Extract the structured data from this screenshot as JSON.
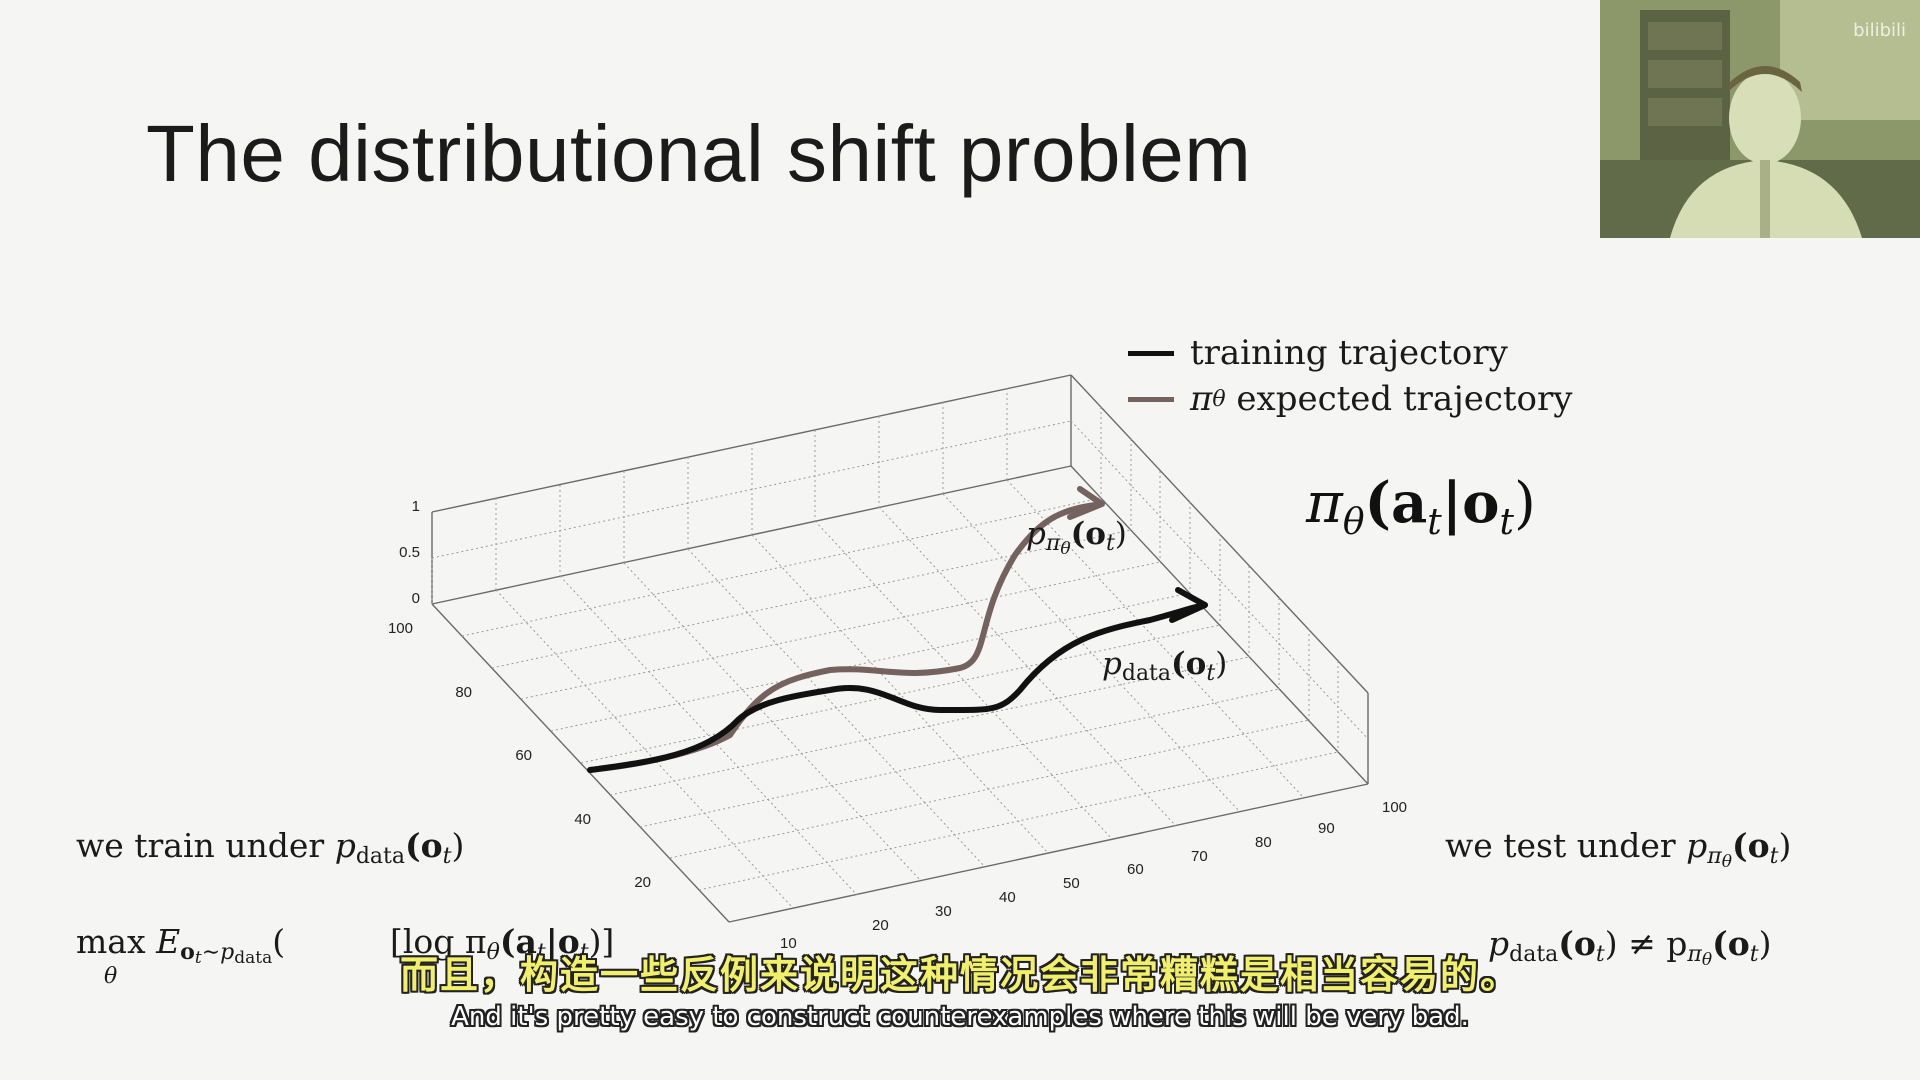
{
  "slide": {
    "title": "The distributional shift problem"
  },
  "legend": {
    "items": [
      {
        "label": "training trajectory",
        "color": "#111111"
      },
      {
        "label_prefix": "π",
        "label_sub": "θ",
        "label": "expected trajectory",
        "color": "#75625e"
      }
    ]
  },
  "policy": {
    "pi": "π",
    "theta": "θ",
    "args": "(a",
    "t": "t",
    "bar": "|o",
    "t2": "t",
    "close": ")"
  },
  "plot": {
    "z_ticks": [
      "1",
      "0.5",
      "0"
    ],
    "y_ticks": [
      "100",
      "80",
      "60",
      "40",
      "20"
    ],
    "x_ticks": [
      "10",
      "20",
      "30",
      "40",
      "50",
      "60",
      "70",
      "80",
      "90",
      "100"
    ],
    "label_ppi": {
      "p": "p",
      "sub": "π",
      "subsub": "θ",
      "arg": "(o",
      "t": "t",
      "close": ")"
    },
    "label_pdata": {
      "p": "p",
      "sub": "data",
      "arg": "(o",
      "t": "t",
      "close": ")"
    }
  },
  "equations": {
    "train_under": {
      "text": "we train under ",
      "p": "p",
      "sub": "data",
      "arg": "(o",
      "t": "t",
      "close": ")"
    },
    "test_under": {
      "text": "we test under ",
      "p": "p",
      "sub": "π",
      "subsub": "θ",
      "arg": "(o",
      "t": "t",
      "close": ")"
    },
    "max_obj": {
      "max": "max",
      "theta": "θ",
      "E": "E",
      "sub": "o",
      "subt": "t",
      "subrest": "∼p",
      "subdata": "data",
      "rest": "(",
      "log": "[log π",
      "logsub": "θ",
      "args": "(a",
      "argt": "t",
      "bar": "|o",
      "bart": "t",
      "close": ")]"
    },
    "neq": {
      "p": "p",
      "sub": "data",
      "arg": "(o",
      "t": "t",
      "close": ") ≠ p",
      "sub2": "π",
      "subsub2": "θ",
      "arg2": "(o",
      "t2": "t",
      "close2": ")"
    }
  },
  "subtitles": {
    "chinese": "而且，构造一些反例来说明这种情况会非常糟糕是相当容易的。",
    "english": "And it's pretty easy to construct counterexamples where this will be very bad."
  },
  "webcam": {
    "logo": "bilibili"
  }
}
